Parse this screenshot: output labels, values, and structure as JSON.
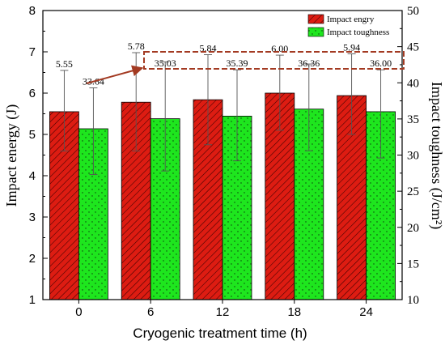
{
  "chart_data": {
    "type": "bar",
    "xlabel": "Cryogenic treatment time (h)",
    "ylabel_left": "Impact energy (J)",
    "ylabel_right": "Impact toughness (J/cm²)",
    "categories": [
      "0",
      "6",
      "12",
      "18",
      "24"
    ],
    "ylim_left": [
      1,
      8
    ],
    "ylim_right": [
      10,
      50
    ],
    "yticks_left": [
      "1",
      "2",
      "3",
      "4",
      "5",
      "6",
      "7",
      "8"
    ],
    "yticks_right": [
      "10",
      "15",
      "20",
      "25",
      "30",
      "35",
      "40",
      "45",
      "50"
    ],
    "series": [
      {
        "name": "Impact engry",
        "axis": "left",
        "color": "#dd1c12",
        "pattern": "diagonal-hatch",
        "values": [
          5.55,
          5.78,
          5.84,
          6.0,
          5.94
        ],
        "labels": [
          "5.55",
          "5.78",
          "5.84",
          "6.00",
          "5.94"
        ],
        "error_low": [
          4.6,
          4.6,
          4.75,
          5.1,
          5.0
        ],
        "error_high": [
          6.55,
          6.98,
          6.93,
          6.92,
          6.95
        ]
      },
      {
        "name": "Impact toughness",
        "axis": "right",
        "color": "#1ee61e",
        "pattern": "dots",
        "values": [
          33.64,
          35.03,
          35.39,
          36.36,
          36.0
        ],
        "labels": [
          "33.64",
          "35.03",
          "35.39",
          "36.36",
          "36.00"
        ],
        "error_low": [
          27.3,
          27.8,
          29.2,
          30.6,
          29.6
        ],
        "error_high": [
          39.3,
          42.9,
          41.8,
          42.6,
          41.8
        ]
      }
    ],
    "legend_position": "top-right",
    "annotation": "dashed box around toughness labels for 6–24 h with arrow from 0 h"
  }
}
